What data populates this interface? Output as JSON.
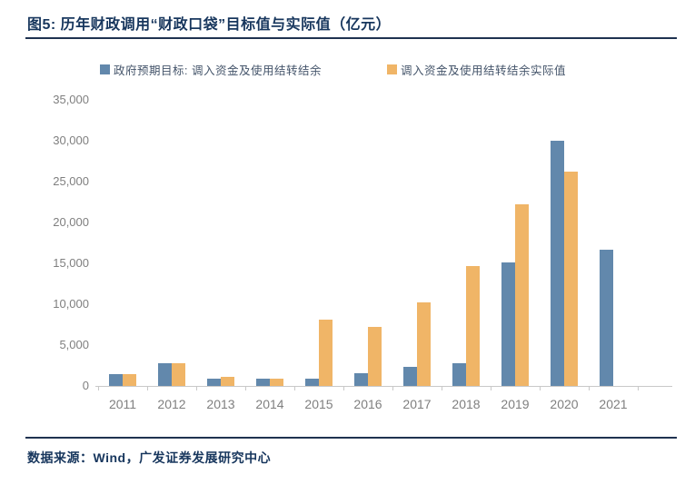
{
  "page": {
    "title": "图5:  历年财政调用“财政口袋”目标值与实际值（亿元）",
    "source": "数据来源：Wind，广发证券发展研究中心"
  },
  "colors": {
    "navy": "#17365D",
    "rule": "#1F3250",
    "target_blue": "#6288AC",
    "actual_orange": "#F0B567",
    "axis_label_gray": "#7F7F7F",
    "axis_line_gray": "#C8C8C8",
    "legend_text": "#44546A"
  },
  "chart_data": {
    "type": "bar",
    "title": "历年财政调用“财政口袋”目标值与实际值（亿元）",
    "categories": [
      "2011",
      "2012",
      "2013",
      "2014",
      "2015",
      "2016",
      "2017",
      "2018",
      "2019",
      "2020",
      "2021"
    ],
    "series": [
      {
        "name": "政府预期目标: 调入资金及使用结转结余",
        "color": "#6288AC",
        "values": [
          1500,
          2800,
          900,
          900,
          900,
          1600,
          2300,
          2800,
          15100,
          30000,
          16700
        ]
      },
      {
        "name": "调入资金及使用结转结余实际值",
        "color": "#F0B567",
        "values": [
          1500,
          2800,
          1100,
          900,
          8100,
          7200,
          10200,
          14700,
          22200,
          26200,
          null
        ]
      }
    ],
    "xlabel": "",
    "ylabel": "",
    "ylim": [
      0,
      35000
    ],
    "ytick_step": 5000,
    "ytick_labels": [
      "0",
      "5,000",
      "10,000",
      "15,000",
      "20,000",
      "25,000",
      "30,000",
      "35,000"
    ],
    "grid": false,
    "legend_position": "top"
  }
}
